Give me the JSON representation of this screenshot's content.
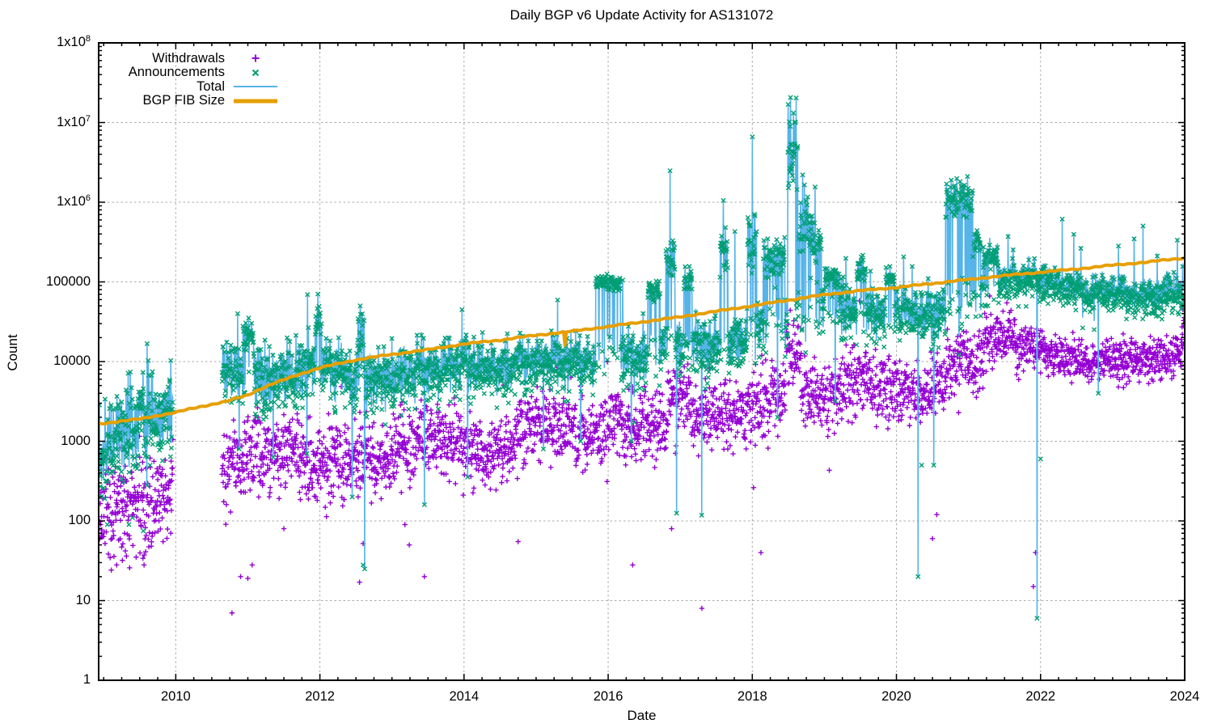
{
  "title": "Daily BGP v6 Update Activity for AS131072",
  "axes": {
    "x_label": "Date",
    "y_label": "Count",
    "x_ticks": [
      {
        "value": 2010,
        "label": "2010"
      },
      {
        "value": 2012,
        "label": "2012"
      },
      {
        "value": 2014,
        "label": "2014"
      },
      {
        "value": 2016,
        "label": "2016"
      },
      {
        "value": 2018,
        "label": "2018"
      },
      {
        "value": 2020,
        "label": "2020"
      },
      {
        "value": 2022,
        "label": "2022"
      },
      {
        "value": 2024,
        "label": "2024"
      }
    ],
    "y_ticks": [
      {
        "value": 1,
        "label": "1"
      },
      {
        "value": 10,
        "label": "10"
      },
      {
        "value": 100,
        "label": "100"
      },
      {
        "value": 1000,
        "label": "1000"
      },
      {
        "value": 10000,
        "label": "10000"
      },
      {
        "value": 100000,
        "label": "100000"
      },
      {
        "value": 1000000,
        "label": "1x10^6"
      },
      {
        "value": 10000000,
        "label": "1x10^7"
      },
      {
        "value": 100000000,
        "label": "1x10^8"
      }
    ],
    "x_minor_interval_years": 0.25,
    "y_scale": "log10",
    "grid": "dashed at 2-year x majors and decade y majors"
  },
  "legend": [
    {
      "label": "Withdrawals",
      "marker": "plus",
      "color": "#9400d3"
    },
    {
      "label": "Announcements",
      "marker": "cross",
      "color": "#009e73"
    },
    {
      "label": "Total",
      "marker": "line",
      "color": "#56b4e9"
    },
    {
      "label": "BGP FIB Size",
      "marker": "thick-line",
      "color": "#e69f00"
    }
  ],
  "colors": {
    "withdrawals": "#9400d3",
    "announcements": "#009e73",
    "total": "#56b4e9",
    "fib": "#e69f00",
    "grid": "#a9a9a9",
    "axis": "#000000",
    "background": "#ffffff"
  },
  "chart_data": {
    "type": "scatter",
    "title": "Daily BGP v6 Update Activity for AS131072",
    "xlabel": "Date",
    "ylabel": "Count",
    "x_unit": "decimal_year",
    "x_domain": [
      2008.93,
      2024.0
    ],
    "y_domain": [
      1,
      100000000
    ],
    "gap": [
      2009.96,
      2010.64
    ],
    "sample_step_days": 1.5,
    "seed": 131072,
    "noise_log10_std": [
      [
        2008.94,
        0.3
      ],
      [
        2010.8,
        0.22
      ],
      [
        2012,
        0.22
      ],
      [
        2014,
        0.18
      ],
      [
        2016,
        0.18
      ],
      [
        2018,
        0.2
      ],
      [
        2019.5,
        0.18
      ],
      [
        2021,
        0.16
      ],
      [
        2022.3,
        0.1
      ],
      [
        2024,
        0.12
      ]
    ],
    "series": {
      "withdrawals": {
        "color": "#9400d3",
        "marker": "plus",
        "trend": [
          [
            2008.94,
            110
          ],
          [
            2009.15,
            140
          ],
          [
            2009.45,
            160
          ],
          [
            2009.9,
            180
          ],
          [
            2010.65,
            350
          ],
          [
            2011,
            630
          ],
          [
            2011.4,
            800
          ],
          [
            2011.8,
            560
          ],
          [
            2012.2,
            500
          ],
          [
            2012.7,
            630
          ],
          [
            2013.1,
            700
          ],
          [
            2013.5,
            1100
          ],
          [
            2013.9,
            1000
          ],
          [
            2014.3,
            630
          ],
          [
            2014.7,
            1000
          ],
          [
            2015,
            1600
          ],
          [
            2015.4,
            1400
          ],
          [
            2016,
            1250
          ],
          [
            2016.5,
            1600
          ],
          [
            2017,
            2000
          ],
          [
            2017.5,
            2000
          ],
          [
            2018,
            2500
          ],
          [
            2018.5,
            4000
          ],
          [
            2019,
            4000
          ],
          [
            2019.5,
            5000
          ],
          [
            2020,
            4500
          ],
          [
            2020.4,
            4000
          ],
          [
            2020.8,
            6300
          ],
          [
            2021.2,
            10000
          ],
          [
            2021.6,
            14000
          ],
          [
            2021.9,
            16000
          ],
          [
            2022.2,
            12500
          ],
          [
            2022.6,
            10000
          ],
          [
            2023,
            10000
          ],
          [
            2023.5,
            11000
          ],
          [
            2023.8,
            11000
          ],
          [
            2024,
            16000
          ]
        ],
        "boosts": [
          [
            2016,
            2016.2,
            1.4
          ],
          [
            2016.82,
            2017.15,
            2
          ],
          [
            2018.45,
            2018.68,
            3.2
          ],
          [
            2020.7,
            2021,
            1.4
          ],
          [
            2021.2,
            2021.65,
            1.6
          ],
          [
            2023.95,
            2024.03,
            1.5
          ]
        ],
        "outliers": [
          [
            2009.18,
            28
          ],
          [
            2009.26,
            32
          ],
          [
            2009.3,
            42
          ],
          [
            2009.56,
            28
          ],
          [
            2010.78,
            7
          ],
          [
            2010.9,
            20
          ],
          [
            2011,
            19
          ],
          [
            2011.06,
            28
          ],
          [
            2011.5,
            80
          ],
          [
            2012.55,
            17
          ],
          [
            2012.6,
            52
          ],
          [
            2013.18,
            90
          ],
          [
            2013.24,
            50
          ],
          [
            2013.45,
            20
          ],
          [
            2014.75,
            55
          ],
          [
            2016.34,
            28
          ],
          [
            2016.88,
            80
          ],
          [
            2017.3,
            8
          ],
          [
            2018.12,
            40
          ],
          [
            2020.5,
            60
          ],
          [
            2020.56,
            120
          ],
          [
            2021.9,
            15
          ],
          [
            2021.93,
            40
          ],
          [
            2023.08,
            4800
          ],
          [
            2023.15,
            4700
          ]
        ]
      },
      "announcements": {
        "color": "#009e73",
        "marker": "cross",
        "trend": [
          [
            2008.94,
            630
          ],
          [
            2009.1,
            900
          ],
          [
            2009.4,
            1800
          ],
          [
            2009.9,
            2200
          ],
          [
            2010.65,
            8000
          ],
          [
            2011,
            6300
          ],
          [
            2011.5,
            5600
          ],
          [
            2012,
            9000
          ],
          [
            2012.4,
            6300
          ],
          [
            2012.8,
            5600
          ],
          [
            2013.2,
            6300
          ],
          [
            2013.6,
            7000
          ],
          [
            2014,
            9000
          ],
          [
            2014.5,
            7000
          ],
          [
            2015,
            9000
          ],
          [
            2015.5,
            9000
          ],
          [
            2016,
            11000
          ],
          [
            2016.5,
            11000
          ],
          [
            2017,
            16000
          ],
          [
            2017.5,
            14000
          ],
          [
            2018,
            22000
          ],
          [
            2018.5,
            32000
          ],
          [
            2019,
            45000
          ],
          [
            2019.5,
            40000
          ],
          [
            2020,
            40000
          ],
          [
            2020.5,
            35000
          ],
          [
            2021,
            63000
          ],
          [
            2021.5,
            100000
          ],
          [
            2021.9,
            100000
          ],
          [
            2022.2,
            90000
          ],
          [
            2022.6,
            70000
          ],
          [
            2023,
            63000
          ],
          [
            2023.5,
            60000
          ],
          [
            2024,
            70000
          ]
        ],
        "plateau_events": [
          [
            2010.93,
            2011.08,
            22000,
            0.15
          ],
          [
            2011.94,
            2012.03,
            32000,
            0.2
          ],
          [
            2012.52,
            2012.62,
            20000,
            0.25
          ],
          [
            2015.82,
            2016.17,
            100000,
            0.08
          ],
          [
            2016.55,
            2016.72,
            76000,
            0.1
          ],
          [
            2016.8,
            2016.93,
            200000,
            0.2
          ],
          [
            2017.05,
            2017.17,
            112000,
            0.12
          ],
          [
            2017.55,
            2017.66,
            250000,
            0.25
          ],
          [
            2017.93,
            2018.06,
            320000,
            0.3
          ],
          [
            2018.15,
            2018.45,
            220000,
            0.2
          ],
          [
            2018.49,
            2018.63,
            4000000,
            0.45
          ],
          [
            2018.64,
            2018.82,
            560000,
            0.3
          ],
          [
            2018.82,
            2018.96,
            320000,
            0.25
          ],
          [
            2019,
            2019.2,
            112000,
            0.12
          ],
          [
            2019.45,
            2019.58,
            140000,
            0.12
          ],
          [
            2019.85,
            2019.97,
            112000,
            0.1
          ],
          [
            2020.68,
            2021.06,
            1100000,
            0.18
          ],
          [
            2021.07,
            2021.17,
            320000,
            0.15
          ],
          [
            2021.2,
            2021.42,
            200000,
            0.12
          ]
        ],
        "spike_events": [
          [
            2009.33,
            4000
          ],
          [
            2011.05,
            32000
          ],
          [
            2011.83,
            70000
          ],
          [
            2011.97,
            71000
          ],
          [
            2012.56,
            50000
          ],
          [
            2013,
            20000
          ],
          [
            2013.35,
            18000
          ],
          [
            2013.97,
            45000
          ],
          [
            2014.6,
            22000
          ],
          [
            2015.3,
            60000
          ],
          [
            2015.55,
            25000
          ],
          [
            2016.2,
            112000
          ],
          [
            2016.86,
            2500000
          ],
          [
            2017.6,
            1000000
          ],
          [
            2017.76,
            450000
          ],
          [
            2018,
            6600000
          ],
          [
            2018.53,
            21000000
          ],
          [
            2018.57,
            14000000
          ],
          [
            2018.61,
            20000000
          ],
          [
            2018.7,
            2200000
          ],
          [
            2018.87,
            1600000
          ],
          [
            2019.3,
            200000
          ],
          [
            2020.1,
            200000
          ],
          [
            2020.22,
            160000
          ],
          [
            2021.55,
            355000
          ],
          [
            2021.62,
            250000
          ],
          [
            2022.3,
            600000
          ],
          [
            2022.46,
            400000
          ],
          [
            2022.56,
            250000
          ],
          [
            2023.08,
            280000
          ],
          [
            2023.3,
            355000
          ],
          [
            2023.42,
            470000
          ],
          [
            2023.62,
            200000
          ],
          [
            2023.9,
            320000
          ],
          [
            2023.97,
            160000
          ]
        ],
        "dip_events": [
          [
            2009.6,
            280
          ],
          [
            2010.88,
            800
          ],
          [
            2011.35,
            630
          ],
          [
            2011.82,
            700
          ],
          [
            2012.45,
            200
          ],
          [
            2012.62,
            25
          ],
          [
            2013.45,
            160
          ],
          [
            2014.05,
            355
          ],
          [
            2015.1,
            800
          ],
          [
            2015.62,
            1000
          ],
          [
            2016.32,
            1000
          ],
          [
            2016.95,
            125
          ],
          [
            2017.3,
            118
          ],
          [
            2018.35,
            2000
          ],
          [
            2019.15,
            3200
          ],
          [
            2020.3,
            20
          ],
          [
            2020.52,
            500
          ],
          [
            2021.95,
            6
          ],
          [
            2022.8,
            4000
          ]
        ],
        "outliers": [
          [
            2009.05,
            90
          ],
          [
            2009.35,
            90
          ],
          [
            2009.4,
            110
          ],
          [
            2009.55,
            75
          ],
          [
            2012.6,
            28
          ],
          [
            2020.35,
            500
          ],
          [
            2022,
            600
          ]
        ]
      },
      "total": {
        "color": "#56b4e9",
        "style": "line",
        "definition": "announcements + withdrawals per day; follows announcement spikes and dips"
      },
      "bgp_fib_size": {
        "color": "#e69f00",
        "style": "thick-line",
        "anchors": [
          [
            2008.93,
            1650
          ],
          [
            2009.5,
            1900
          ],
          [
            2010,
            2300
          ],
          [
            2010.7,
            3150
          ],
          [
            2011,
            3800
          ],
          [
            2011.5,
            5900
          ],
          [
            2012,
            8300
          ],
          [
            2012.5,
            10500
          ],
          [
            2013,
            12300
          ],
          [
            2013.5,
            14100
          ],
          [
            2014,
            16600
          ],
          [
            2014.5,
            18600
          ],
          [
            2015,
            21400
          ],
          [
            2015.5,
            24000
          ],
          [
            2016,
            27500
          ],
          [
            2016.5,
            31600
          ],
          [
            2017,
            36300
          ],
          [
            2017.5,
            42700
          ],
          [
            2018,
            50000
          ],
          [
            2018.5,
            58900
          ],
          [
            2019,
            69000
          ],
          [
            2019.5,
            77600
          ],
          [
            2020,
            85000
          ],
          [
            2020.5,
            95500
          ],
          [
            2021,
            107000
          ],
          [
            2021.5,
            120000
          ],
          [
            2022,
            132000
          ],
          [
            2022.5,
            145000
          ],
          [
            2023,
            162000
          ],
          [
            2023.5,
            178000
          ],
          [
            2024,
            200000
          ]
        ],
        "dips": [
          [
            2015.4,
            0.17,
            0.016
          ]
        ]
      }
    }
  }
}
